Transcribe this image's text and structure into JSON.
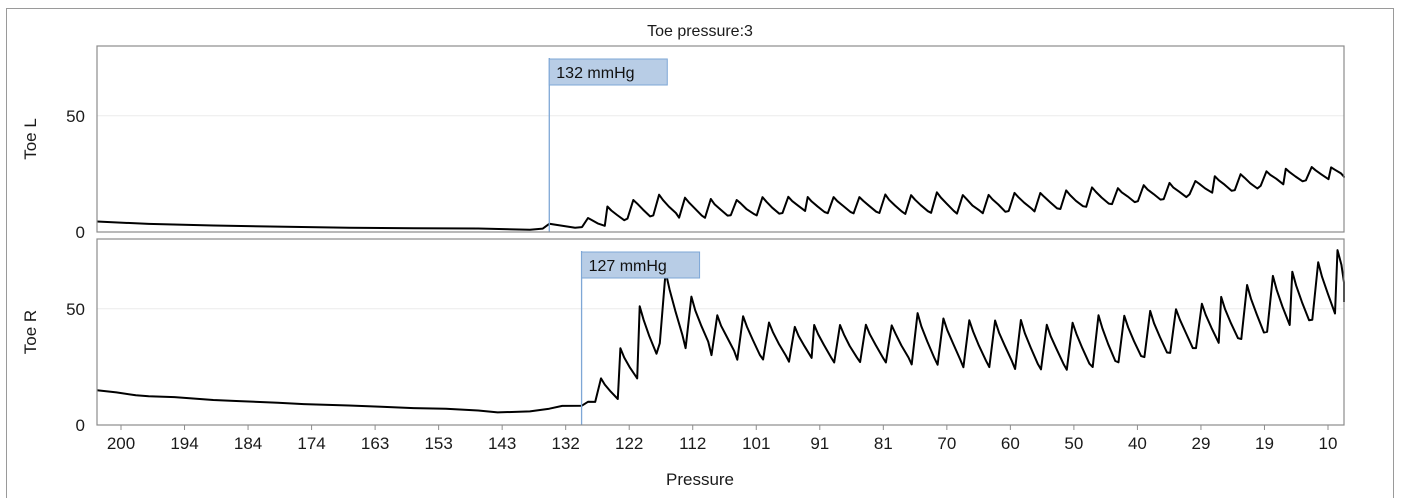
{
  "chart_data": {
    "type": "line",
    "title": "Toe pressure:3",
    "xlabel": "Pressure",
    "x_tick_labels": [
      "200",
      "194",
      "184",
      "174",
      "163",
      "153",
      "143",
      "132",
      "122",
      "112",
      "101",
      "91",
      "81",
      "70",
      "60",
      "50",
      "40",
      "29",
      "19",
      "10"
    ],
    "x_range": [
      202,
      9
    ],
    "panels": [
      {
        "ylabel": "Toe L",
        "ylim": [
          0,
          80
        ],
        "yticks": [
          0,
          50
        ],
        "marker_label": "132 mmHg",
        "marker_x": 132,
        "series": [
          {
            "baseline_points": [
              [
                202,
                4.5
              ],
              [
                194,
                3.5
              ],
              [
                184,
                2.6
              ],
              [
                174,
                2.2
              ],
              [
                163,
                1.8
              ],
              [
                153,
                1.6
              ],
              [
                143,
                1.3
              ],
              [
                135,
                1.2
              ],
              [
                133,
                1.5
              ],
              [
                132,
                3.5
              ],
              [
                131,
                3
              ],
              [
                128,
                2
              ],
              [
                127,
                2.2
              ]
            ],
            "pulses": [
              {
                "x": 126,
                "base": 2,
                "peak": 6
              },
              {
                "x": 123,
                "base": 4,
                "peak": 11
              },
              {
                "x": 119,
                "base": 6,
                "peak": 14
              },
              {
                "x": 115,
                "base": 7,
                "peak": 16
              },
              {
                "x": 111,
                "base": 6,
                "peak": 15
              },
              {
                "x": 107,
                "base": 6,
                "peak": 14
              },
              {
                "x": 103,
                "base": 7,
                "peak": 14
              },
              {
                "x": 99,
                "base": 7,
                "peak": 15
              },
              {
                "x": 95,
                "base": 8,
                "peak": 15
              },
              {
                "x": 92,
                "base": 8,
                "peak": 15
              },
              {
                "x": 88,
                "base": 8,
                "peak": 15
              },
              {
                "x": 84,
                "base": 8,
                "peak": 15
              },
              {
                "x": 80,
                "base": 8,
                "peak": 16
              },
              {
                "x": 76,
                "base": 8,
                "peak": 16
              },
              {
                "x": 72,
                "base": 8,
                "peak": 17
              },
              {
                "x": 68,
                "base": 8,
                "peak": 16
              },
              {
                "x": 64,
                "base": 8,
                "peak": 16
              },
              {
                "x": 60,
                "base": 9,
                "peak": 17
              },
              {
                "x": 56,
                "base": 9,
                "peak": 17
              },
              {
                "x": 52,
                "base": 10,
                "peak": 18
              },
              {
                "x": 48,
                "base": 11,
                "peak": 19
              },
              {
                "x": 44,
                "base": 12,
                "peak": 19
              },
              {
                "x": 40,
                "base": 13,
                "peak": 20
              },
              {
                "x": 36,
                "base": 14,
                "peak": 21
              },
              {
                "x": 32,
                "base": 16,
                "peak": 22
              },
              {
                "x": 29,
                "base": 17,
                "peak": 24
              },
              {
                "x": 25,
                "base": 18,
                "peak": 25
              },
              {
                "x": 21,
                "base": 20,
                "peak": 26
              },
              {
                "x": 18,
                "base": 21,
                "peak": 27
              },
              {
                "x": 14,
                "base": 22,
                "peak": 28
              },
              {
                "x": 11,
                "base": 23,
                "peak": 28
              }
            ]
          }
        ]
      },
      {
        "ylabel": "Toe R",
        "ylim": [
          0,
          80
        ],
        "yticks": [
          0,
          50
        ],
        "marker_label": "127 mmHg",
        "marker_x": 127,
        "series": [
          {
            "baseline_points": [
              [
                202,
                15
              ],
              [
                199,
                14
              ],
              [
                196,
                13
              ],
              [
                194,
                12.5
              ],
              [
                190,
                12
              ],
              [
                184,
                11
              ],
              [
                180,
                10.5
              ],
              [
                174,
                9.5
              ],
              [
                170,
                9
              ],
              [
                163,
                8.5
              ],
              [
                158,
                8
              ],
              [
                153,
                7.5
              ],
              [
                148,
                7
              ],
              [
                143,
                6.5
              ],
              [
                140,
                5.5
              ],
              [
                135,
                6
              ],
              [
                132,
                7
              ],
              [
                130,
                8
              ],
              [
                127,
                8.5
              ],
              [
                126,
                10
              ]
            ],
            "pulses": [
              {
                "x": 124,
                "base": 10,
                "peak": 20
              },
              {
                "x": 121,
                "base": 18,
                "peak": 33
              },
              {
                "x": 118,
                "base": 28,
                "peak": 51
              },
              {
                "x": 114,
                "base": 35,
                "peak": 66
              },
              {
                "x": 110,
                "base": 33,
                "peak": 55
              },
              {
                "x": 106,
                "base": 30,
                "peak": 47
              },
              {
                "x": 102,
                "base": 28,
                "peak": 47
              },
              {
                "x": 98,
                "base": 28,
                "peak": 44
              },
              {
                "x": 94,
                "base": 27,
                "peak": 42
              },
              {
                "x": 91,
                "base": 27,
                "peak": 43
              },
              {
                "x": 87,
                "base": 27,
                "peak": 43
              },
              {
                "x": 83,
                "base": 27,
                "peak": 43
              },
              {
                "x": 79,
                "base": 27,
                "peak": 43
              },
              {
                "x": 75,
                "base": 26,
                "peak": 48
              },
              {
                "x": 71,
                "base": 26,
                "peak": 46
              },
              {
                "x": 67,
                "base": 25,
                "peak": 45
              },
              {
                "x": 63,
                "base": 25,
                "peak": 45
              },
              {
                "x": 59,
                "base": 24,
                "peak": 45
              },
              {
                "x": 55,
                "base": 24,
                "peak": 43
              },
              {
                "x": 51,
                "base": 24,
                "peak": 44
              },
              {
                "x": 47,
                "base": 25,
                "peak": 47
              },
              {
                "x": 43,
                "base": 27,
                "peak": 47
              },
              {
                "x": 39,
                "base": 29,
                "peak": 49
              },
              {
                "x": 35,
                "base": 31,
                "peak": 50
              },
              {
                "x": 31,
                "base": 33,
                "peak": 52
              },
              {
                "x": 28,
                "base": 35,
                "peak": 55
              },
              {
                "x": 24,
                "base": 37,
                "peak": 60
              },
              {
                "x": 20,
                "base": 40,
                "peak": 64
              },
              {
                "x": 17,
                "base": 42,
                "peak": 66
              },
              {
                "x": 13,
                "base": 45,
                "peak": 70
              },
              {
                "x": 10,
                "base": 50,
                "peak": 75
              }
            ]
          }
        ]
      }
    ],
    "grid": "horizontal light",
    "colors": {
      "line": "#000000",
      "marker_line": "#7ea7d6",
      "marker_box_fill": "#b8cde6",
      "marker_box_border": "#7ea7d6",
      "frame": "#8c8c8c",
      "grid": "#ececec"
    }
  }
}
